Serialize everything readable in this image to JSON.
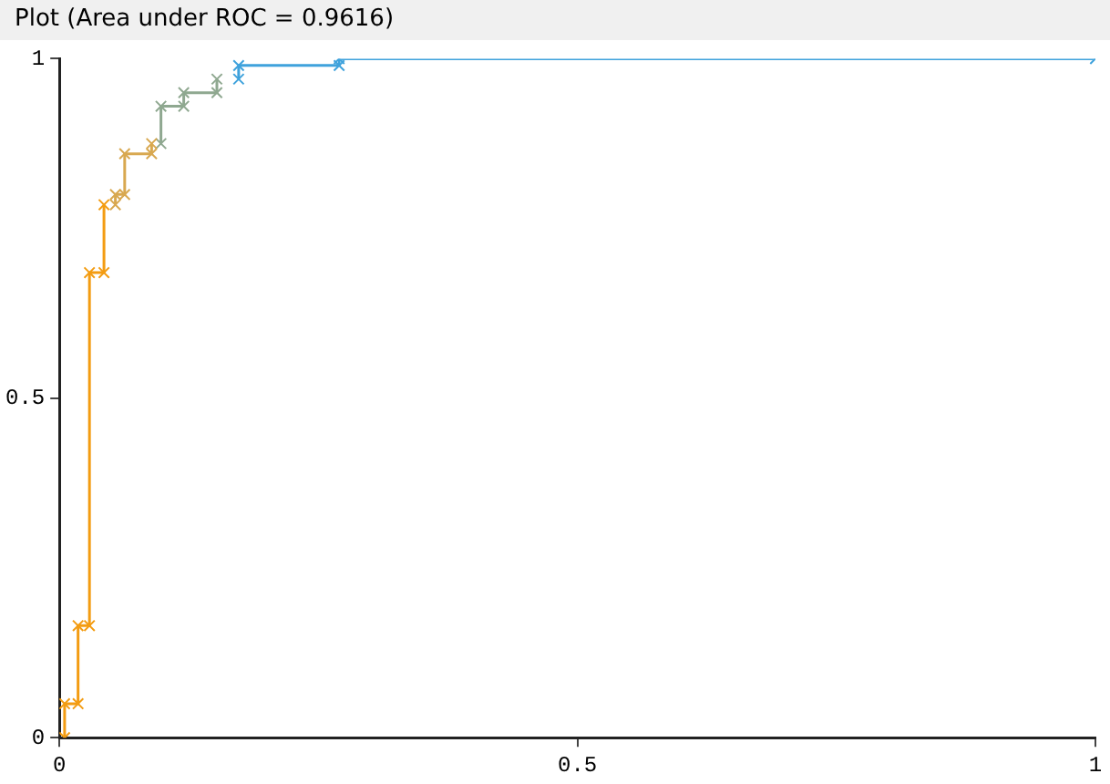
{
  "chart_data": {
    "type": "line",
    "title": "Plot (Area under ROC = 0.9616)",
    "series": [
      {
        "color": "#f39c12",
        "x": [
          0.005,
          0.005,
          0.018,
          0.018,
          0.029,
          0.029,
          0.043,
          0.043
        ],
        "values": [
          0,
          0.05,
          0.05,
          0.165,
          0.165,
          0.685,
          0.685,
          0.785
        ]
      },
      {
        "color": "#d8a850",
        "x": [
          0.054,
          0.054,
          0.063,
          0.063,
          0.089,
          0.089
        ],
        "values": [
          0.785,
          0.8,
          0.8,
          0.86,
          0.86,
          0.875
        ]
      },
      {
        "color": "#8fa890",
        "x": [
          0.098,
          0.098,
          0.12,
          0.12,
          0.152,
          0.152
        ],
        "values": [
          0.875,
          0.93,
          0.93,
          0.95,
          0.95,
          0.97
        ]
      },
      {
        "color": "#3fa2dc",
        "x": [
          0.173,
          0.173,
          0.27,
          0.27,
          1
        ],
        "values": [
          0.97,
          0.99,
          0.99,
          1,
          1
        ]
      }
    ],
    "xlim": [
      0,
      1
    ],
    "ylim": [
      0,
      1
    ],
    "xticks": [
      0,
      0.5,
      1
    ],
    "yticks": [
      0,
      0.5,
      1
    ],
    "grid": false,
    "legend": false,
    "marker": "cross",
    "line_style": "solid"
  }
}
